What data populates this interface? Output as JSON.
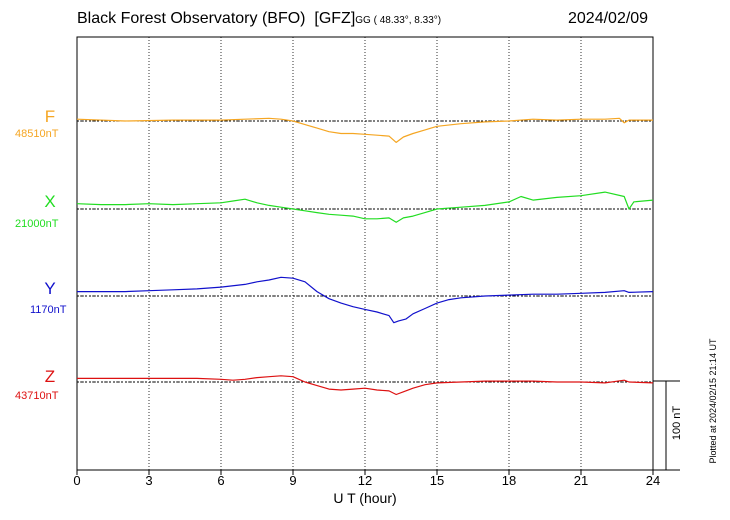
{
  "title": {
    "observatory": "Black Forest Observatory (BFO)",
    "institute": "[GFZ]",
    "coords": "GG ( 48.33°,   8.33°)",
    "date": "2024/02/09"
  },
  "plotted_note": "Plotted at 2024/02/15 21:14 UT",
  "scale_label": "100 nT",
  "colors": {
    "F": "#f5a623",
    "X": "#22dd22",
    "Y": "#1111cc",
    "Z": "#dd1111"
  },
  "chart_data": {
    "type": "line",
    "xlabel": "U T (hour)",
    "xlim": [
      0,
      24
    ],
    "xticks": [
      "0",
      "3",
      "6",
      "9",
      "12",
      "15",
      "18",
      "21",
      "24"
    ],
    "grid": true,
    "scale_nT": 100,
    "series": [
      {
        "name": "F",
        "baseline": "48510nT",
        "x": [
          0,
          2,
          4,
          6,
          7,
          8,
          8.5,
          9,
          9.5,
          10,
          10.5,
          11,
          11.5,
          12,
          12.5,
          13,
          13.3,
          13.6,
          14,
          14.5,
          15,
          16,
          17,
          18,
          19,
          20,
          21,
          22,
          22.6,
          22.8,
          23,
          24
        ],
        "y": [
          2,
          0,
          1,
          1,
          2,
          3,
          2,
          0,
          -4,
          -8,
          -12,
          -14,
          -14,
          -15,
          -16,
          -17,
          -24,
          -18,
          -14,
          -10,
          -6,
          -3,
          -1,
          0,
          2,
          1,
          2,
          2,
          3,
          -2,
          1,
          1
        ]
      },
      {
        "name": "X",
        "baseline": "21000nT",
        "x": [
          0,
          1,
          2,
          3,
          4,
          5,
          6,
          6.5,
          7,
          7.5,
          8,
          8.5,
          9,
          9.5,
          10,
          10.5,
          11,
          11.5,
          12,
          12.5,
          13,
          13.3,
          13.6,
          14,
          14.5,
          15,
          16,
          17,
          18,
          18.5,
          19,
          20,
          21,
          22,
          22.8,
          23,
          23.2,
          24
        ],
        "y": [
          6,
          5,
          5,
          6,
          5,
          6,
          7,
          9,
          11,
          7,
          4,
          2,
          0,
          -2,
          -4,
          -6,
          -7,
          -8,
          -11,
          -11,
          -10,
          -15,
          -10,
          -8,
          -4,
          0,
          2,
          4,
          8,
          14,
          10,
          13,
          15,
          19,
          14,
          0,
          8,
          10
        ]
      },
      {
        "name": "Y",
        "baseline": "1170nT",
        "x": [
          0,
          1,
          2,
          3,
          4,
          5,
          6,
          7,
          7.5,
          8,
          8.5,
          9,
          9.5,
          10,
          10.5,
          11,
          11.5,
          12,
          12.5,
          13,
          13.2,
          13.4,
          13.7,
          14,
          14.5,
          15,
          15.5,
          16,
          17,
          18,
          19,
          20,
          21,
          22,
          22.8,
          23,
          24
        ],
        "y": [
          5,
          5,
          5,
          6,
          7,
          8,
          10,
          13,
          16,
          18,
          21,
          20,
          16,
          5,
          -3,
          -8,
          -12,
          -15,
          -18,
          -22,
          -30,
          -28,
          -26,
          -20,
          -14,
          -8,
          -4,
          -2,
          0,
          1,
          2,
          2,
          3,
          4,
          6,
          4,
          5
        ]
      },
      {
        "name": "Z",
        "baseline": "43710nT",
        "x": [
          0,
          1,
          2,
          3,
          4,
          5,
          6,
          6.5,
          7,
          7.5,
          8,
          8.5,
          9,
          9.5,
          10,
          10.5,
          11,
          11.5,
          12,
          12.5,
          13,
          13.3,
          13.6,
          14,
          14.5,
          15,
          16,
          17,
          18,
          19,
          20,
          21,
          22,
          22.8,
          23,
          24
        ],
        "y": [
          4,
          4,
          4,
          4,
          4,
          4,
          3,
          2,
          3,
          5,
          6,
          7,
          6,
          0,
          -4,
          -8,
          -9,
          -8,
          -7,
          -9,
          -10,
          -14,
          -11,
          -7,
          -3,
          -1,
          0,
          1,
          1,
          1,
          0,
          0,
          -1,
          2,
          0,
          -1
        ]
      }
    ]
  }
}
